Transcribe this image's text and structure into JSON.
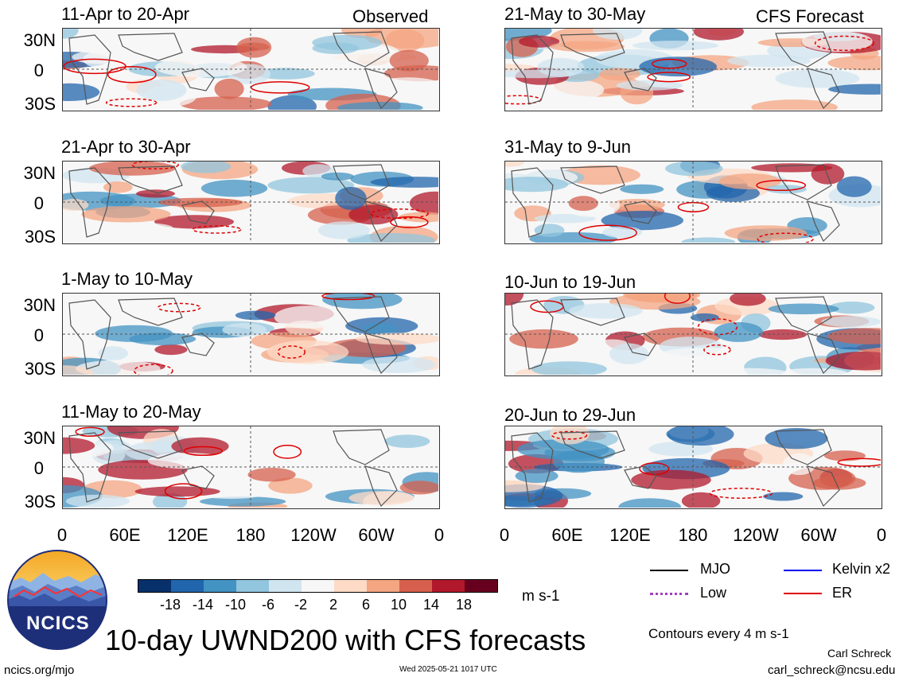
{
  "tags": {
    "observed": "Observed",
    "forecast": "CFS Forecast"
  },
  "panels_left": [
    {
      "title": "11-Apr to 20-Apr"
    },
    {
      "title": "21-Apr to 30-Apr"
    },
    {
      "title": "1-May to 10-May"
    },
    {
      "title": "11-May to 20-May"
    }
  ],
  "panels_right": [
    {
      "title": "21-May to 30-May"
    },
    {
      "title": "31-May to 9-Jun"
    },
    {
      "title": "10-Jun to 19-Jun"
    },
    {
      "title": "20-Jun to 29-Jun"
    }
  ],
  "lat_labels": [
    "30N",
    "0",
    "30S"
  ],
  "lon_labels": [
    "0",
    "60E",
    "120E",
    "180",
    "120W",
    "60W",
    "0"
  ],
  "colorbar": {
    "ticks": [
      "-18",
      "-14",
      "-10",
      "-6",
      "-2",
      "2",
      "6",
      "10",
      "14",
      "18"
    ],
    "units": "m s-1",
    "colors": [
      "#08306b",
      "#2166ac",
      "#4393c3",
      "#92c5de",
      "#d1e5f0",
      "#f7f7f7",
      "#fddbc7",
      "#f4a582",
      "#d6604d",
      "#b2182b",
      "#67001f"
    ]
  },
  "legend": {
    "items": [
      {
        "label": "MJO",
        "color": "#000000",
        "style": "solid"
      },
      {
        "label": "Kelvin x2",
        "color": "#0000ee",
        "style": "solid"
      },
      {
        "label": "Low",
        "color": "#a040c0",
        "style": "dotted"
      },
      {
        "label": "ER",
        "color": "#e00000",
        "style": "solid"
      }
    ],
    "contours": "Contours every 4 m s-1"
  },
  "logo": {
    "text": "NCICS"
  },
  "main_title": "10-day UWND200 with CFS forecasts",
  "footer": {
    "left": "ncics.org/mjo",
    "center": "Wed 2025-05-21 1017 UTC",
    "author": "Carl Schreck",
    "email": "carl_schreck@ncsu.edu"
  }
}
